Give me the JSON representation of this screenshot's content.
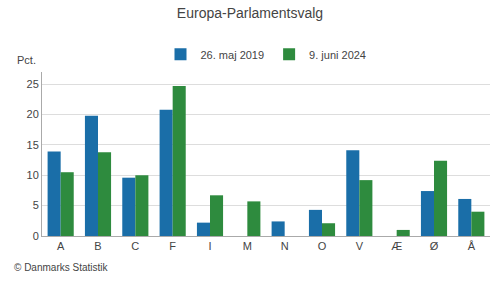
{
  "chart_data": {
    "type": "bar",
    "title": "Europa-Parlamentsvalg",
    "categories": [
      "A",
      "B",
      "C",
      "F",
      "I",
      "M",
      "N",
      "O",
      "V",
      "Æ",
      "Ø",
      "Å"
    ],
    "series": [
      {
        "name": "26. maj 2019",
        "color": "#1a6ea8",
        "values": [
          13.9,
          19.8,
          9.6,
          20.8,
          2.2,
          0,
          2.4,
          4.3,
          14.1,
          0,
          7.4,
          6.1
        ]
      },
      {
        "name": "9. juni 2024",
        "color": "#2e8b3e",
        "values": [
          10.5,
          13.8,
          10.0,
          24.7,
          6.7,
          5.7,
          0,
          2.1,
          9.2,
          1.0,
          12.4,
          4.0
        ]
      }
    ],
    "ylabel": "Pct.",
    "ylim": [
      0,
      27
    ],
    "yticks": [
      0,
      5,
      10,
      15,
      20,
      25
    ],
    "grid": true,
    "legend": "top",
    "annotations": [
      "© Danmarks Statistik"
    ]
  }
}
